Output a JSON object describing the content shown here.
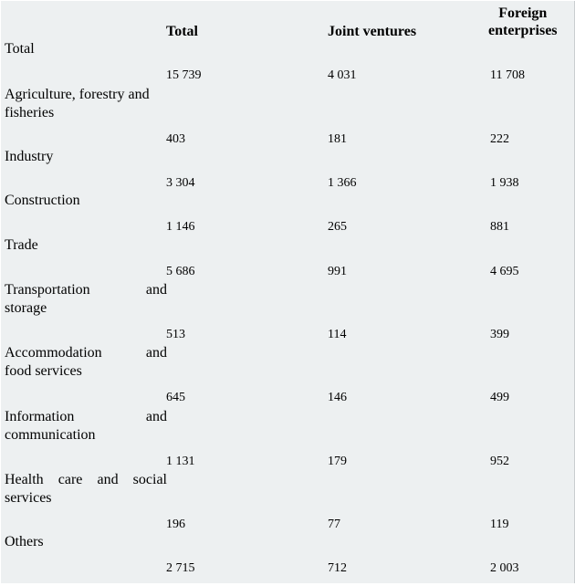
{
  "headers": {
    "total": "Total",
    "joint_ventures": "Joint ventures",
    "foreign_line1": "Foreign",
    "foreign_line2": "enterprises"
  },
  "rows": [
    {
      "label_lines": [
        "Total"
      ],
      "total": "15 739",
      "joint_ventures": "4 031",
      "foreign": "11 708"
    },
    {
      "label_lines": [
        "Agriculture, forestry and",
        "fisheries"
      ],
      "total": "403",
      "joint_ventures": "181",
      "foreign": "222"
    },
    {
      "label_lines": [
        "Industry"
      ],
      "total": "3 304",
      "joint_ventures": "1 366",
      "foreign": "1 938"
    },
    {
      "label_lines": [
        "Construction"
      ],
      "total": "1 146",
      "joint_ventures": "265",
      "foreign": "881"
    },
    {
      "label_lines": [
        "Trade"
      ],
      "total": "5 686",
      "joint_ventures": "991",
      "foreign": "4 695"
    },
    {
      "label_lines": [
        "Transportation and",
        "storage"
      ],
      "total": "513",
      "joint_ventures": "114",
      "foreign": "399"
    },
    {
      "label_lines": [
        "Accommodation and",
        "food services"
      ],
      "total": "645",
      "joint_ventures": "146",
      "foreign": "499"
    },
    {
      "label_lines": [
        "Information and",
        "communication"
      ],
      "total": "1 131",
      "joint_ventures": "179",
      "foreign": "952"
    },
    {
      "label_lines": [
        "Health care and social",
        "services"
      ],
      "total": "196",
      "joint_ventures": "77",
      "foreign": "119"
    },
    {
      "label_lines": [
        "Others"
      ],
      "total": "2 715",
      "joint_ventures": "712",
      "foreign": "2 003"
    }
  ]
}
